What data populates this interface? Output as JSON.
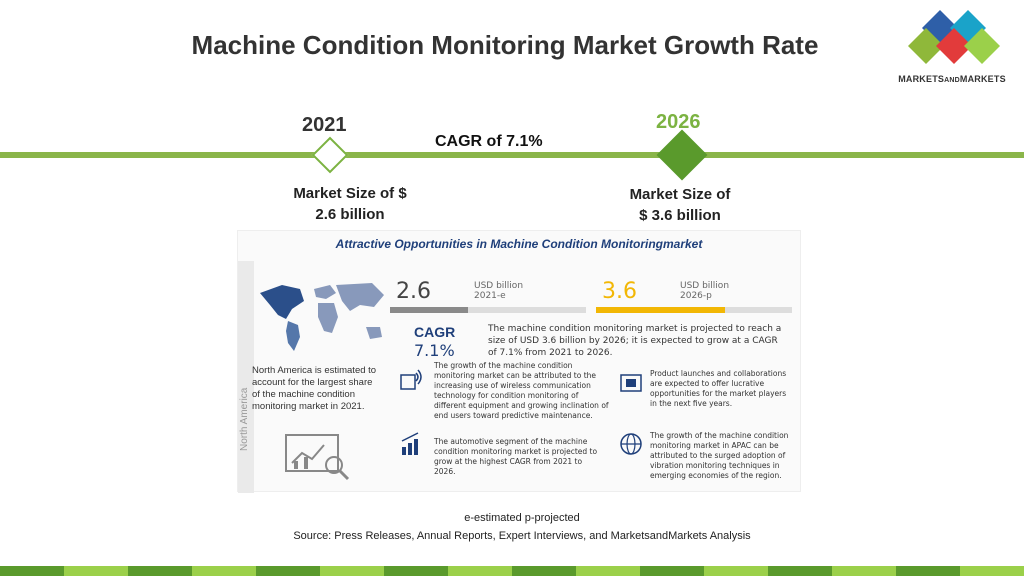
{
  "title": "Machine Condition Monitoring Market Growth Rate",
  "logo": {
    "text_main": "MARKETS",
    "text_and": "AND",
    "text_end": "MARKETS"
  },
  "timeline": {
    "year_start": "2021",
    "year_end": "2026",
    "cagr": "CAGR of 7.1%",
    "size_start_line1": "Market Size of $",
    "size_start_line2": "2.6 billion",
    "size_end_line1": "Market Size of",
    "size_end_line2": "$ 3.6 billion"
  },
  "infographic": {
    "title": "Attractive Opportunities in Machine Condition Monitoringmarket",
    "side_label": "North America",
    "na_text": "North America is estimated to account for the largest share of the machine condition monitoring market in 2021.",
    "value_2021": "2.6",
    "unit_2021_line1": "USD billion",
    "unit_2021_line2": "2021-e",
    "value_2026": "3.6",
    "unit_2026_line1": "USD billion",
    "unit_2026_line2": "2026-p",
    "bar_2021_fraction": 0.4,
    "bar_2026_fraction": 0.66,
    "cagr_label": "CAGR",
    "cagr_value": "7.1%",
    "projection_text": "The machine condition monitoring market is projected to reach a size of USD 3.6 billion by 2026; it is expected to grow at a CAGR of 7.1% from 2021 to 2026.",
    "note_1": "The growth of the machine condition monitoring market can be attributed to the increasing use of wireless communication technology for condition monitoring of different equipment and growing inclination of end users toward predictive maintenance.",
    "note_2": "Product launches and collaborations are expected to offer lucrative opportunities for the market players in the next five years.",
    "note_3": "The automotive segment of the machine condition monitoring market is projected to grow at the highest CAGR from 2021 to 2026.",
    "note_4": "The growth of the machine condition monitoring market in APAC can be attributed to the surged adoption of vibration monitoring techniques in emerging economies of the region."
  },
  "legend": "e-estimated p-projected",
  "source": "Source: Press Releases, Annual Reports, Expert Interviews, and MarketsandMarkets Analysis",
  "colors": {
    "accent_green": "#7cb342",
    "dark_green": "#5a9a2c",
    "navy": "#1f3f7a",
    "gold": "#f2b705"
  }
}
